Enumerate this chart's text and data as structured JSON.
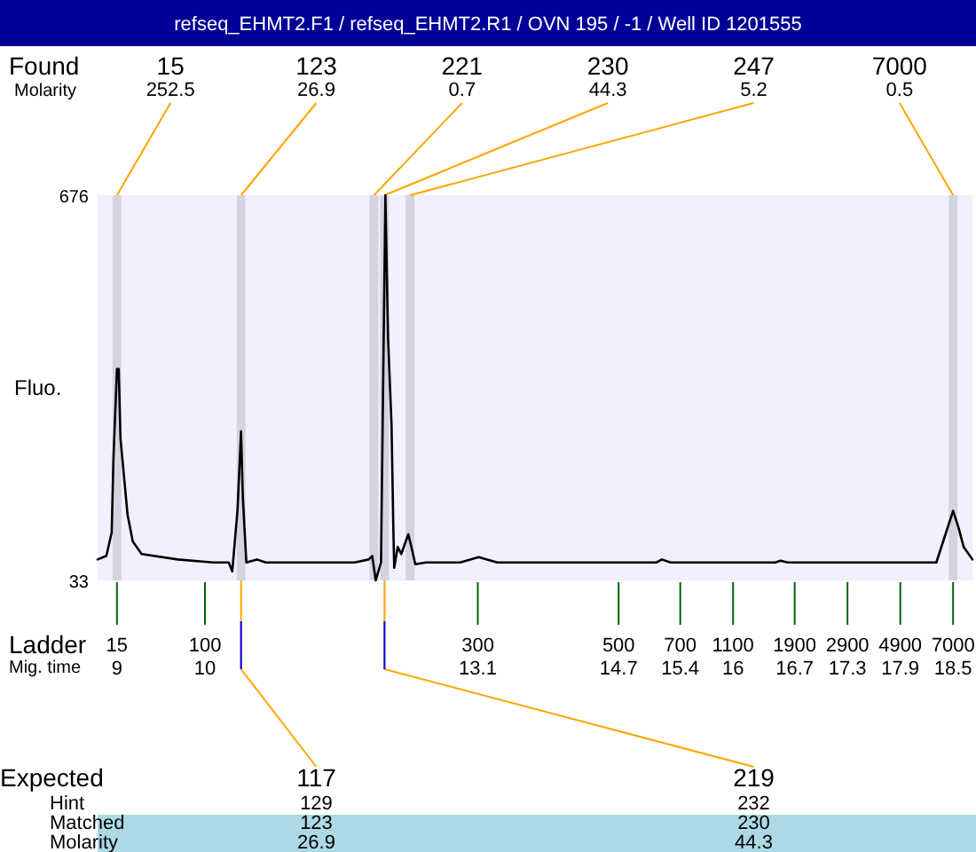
{
  "chart_data": {
    "type": "line",
    "title": "refseq_EHMT2.F1 / refseq_EHMT2.R1 / OVN 195 / -1 / Well ID 1201555",
    "ylabel": "Fluo.",
    "xlabel": "Mig. time",
    "xlim": [
      8.78,
      18.72
    ],
    "xticks": [
      9,
      10,
      13.1,
      14.7,
      15.4,
      16,
      16.7,
      17.3,
      17.9,
      18.5
    ],
    "ylim": [
      33,
      676
    ],
    "yticks": [
      33,
      676
    ],
    "series": [
      {
        "color": "#000000",
        "x": [
          8.78,
          8.88,
          8.94,
          8.96,
          9.0,
          9.02,
          9.04,
          9.12,
          9.18,
          9.28,
          9.69,
          10.09,
          10.27,
          10.31,
          10.37,
          10.41,
          10.43,
          10.47,
          10.59,
          10.69,
          11.7,
          11.86,
          11.9,
          11.94,
          12.0,
          12.05,
          12.08,
          12.12,
          12.14,
          12.15,
          12.19,
          12.23,
          12.31,
          12.34,
          12.39,
          12.51,
          12.9,
          13.11,
          13.32,
          15.13,
          15.19,
          15.29,
          16.48,
          16.54,
          16.62,
          18.31,
          18.42,
          18.5,
          18.56,
          18.62,
          18.72
        ],
        "values": [
          68,
          74,
          113,
          237,
          386,
          386,
          270,
          143,
          98,
          77,
          68,
          63,
          63,
          48,
          151,
          282,
          172,
          63,
          68,
          63,
          63,
          68,
          74,
          33,
          63,
          676,
          439,
          291,
          122,
          54,
          89,
          77,
          110,
          92,
          60,
          63,
          63,
          72,
          63,
          63,
          68,
          63,
          63,
          66,
          63,
          63,
          113,
          149,
          122,
          89,
          68
        ]
      }
    ],
    "bands": [
      {
        "axis": "x",
        "from": 8.95,
        "to": 9.05,
        "label": "15",
        "color": "#d4d4e0"
      },
      {
        "axis": "x",
        "from": 10.36,
        "to": 10.46,
        "label": "123",
        "color": "#d4d4e0"
      },
      {
        "axis": "x",
        "from": 11.87,
        "to": 11.97,
        "label": "221",
        "color": "#d4d4e0"
      },
      {
        "axis": "x",
        "from": 11.99,
        "to": 12.09,
        "label": "230",
        "color": "#d4d4e0"
      },
      {
        "axis": "x",
        "from": 12.28,
        "to": 12.38,
        "label": "247",
        "color": "#d4d4e0"
      },
      {
        "axis": "x",
        "from": 18.45,
        "to": 18.55,
        "label": "7000",
        "color": "#d4d4e0"
      }
    ],
    "annotations": [
      "Found",
      "Molarity",
      "Ladder",
      "Expected",
      "Hint",
      "Matched",
      "Molarity",
      "15",
      "100",
      "300",
      "500",
      "700",
      "1100",
      "1900",
      "2900",
      "4900",
      "7000",
      {
        "text": "252.5",
        "x": 9.0,
        "y": 676
      },
      {
        "text": "26.9",
        "x": 10.41,
        "y": 676
      },
      {
        "text": "0.7",
        "x": 11.92,
        "y": 676
      },
      {
        "text": "44.3",
        "x": 12.04,
        "y": 676
      },
      {
        "text": "5.2",
        "x": 12.33,
        "y": 676
      },
      {
        "text": "0.5",
        "x": 18.5,
        "y": 676
      },
      {
        "text": "117",
        "x": 10.41,
        "y": 33
      },
      "129",
      "123",
      "26.9",
      {
        "text": "219",
        "x": 12.04,
        "y": 33
      },
      "232",
      "230",
      "44.3"
    ]
  }
}
